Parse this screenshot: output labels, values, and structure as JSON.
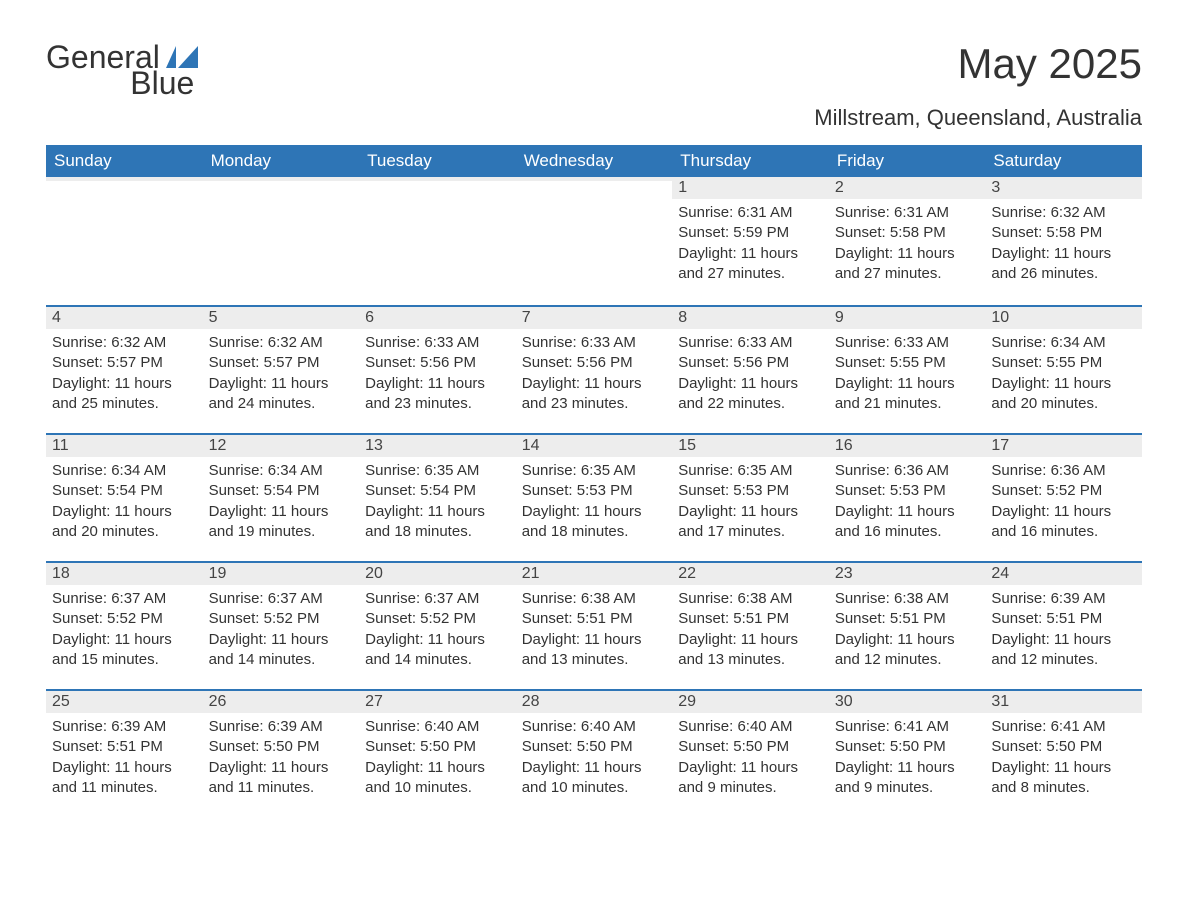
{
  "logo": {
    "word1": "General",
    "word2": "Blue",
    "accent_color": "#2e75b6"
  },
  "title": "May 2025",
  "location": "Millstream, Queensland, Australia",
  "colors": {
    "header_bg": "#2e75b6",
    "header_fg": "#ffffff",
    "daynum_bg": "#ededed",
    "rule": "#2e75b6",
    "text": "#333333",
    "page_bg": "#ffffff"
  },
  "typography": {
    "title_fontsize": 42,
    "subtitle_fontsize": 22,
    "header_fontsize": 17,
    "daynum_fontsize": 16,
    "body_fontsize": 15
  },
  "day_headers": [
    "Sunday",
    "Monday",
    "Tuesday",
    "Wednesday",
    "Thursday",
    "Friday",
    "Saturday"
  ],
  "weeks": [
    [
      null,
      null,
      null,
      null,
      {
        "n": "1",
        "sunrise": "Sunrise: 6:31 AM",
        "sunset": "Sunset: 5:59 PM",
        "daylight": "Daylight: 11 hours and 27 minutes."
      },
      {
        "n": "2",
        "sunrise": "Sunrise: 6:31 AM",
        "sunset": "Sunset: 5:58 PM",
        "daylight": "Daylight: 11 hours and 27 minutes."
      },
      {
        "n": "3",
        "sunrise": "Sunrise: 6:32 AM",
        "sunset": "Sunset: 5:58 PM",
        "daylight": "Daylight: 11 hours and 26 minutes."
      }
    ],
    [
      {
        "n": "4",
        "sunrise": "Sunrise: 6:32 AM",
        "sunset": "Sunset: 5:57 PM",
        "daylight": "Daylight: 11 hours and 25 minutes."
      },
      {
        "n": "5",
        "sunrise": "Sunrise: 6:32 AM",
        "sunset": "Sunset: 5:57 PM",
        "daylight": "Daylight: 11 hours and 24 minutes."
      },
      {
        "n": "6",
        "sunrise": "Sunrise: 6:33 AM",
        "sunset": "Sunset: 5:56 PM",
        "daylight": "Daylight: 11 hours and 23 minutes."
      },
      {
        "n": "7",
        "sunrise": "Sunrise: 6:33 AM",
        "sunset": "Sunset: 5:56 PM",
        "daylight": "Daylight: 11 hours and 23 minutes."
      },
      {
        "n": "8",
        "sunrise": "Sunrise: 6:33 AM",
        "sunset": "Sunset: 5:56 PM",
        "daylight": "Daylight: 11 hours and 22 minutes."
      },
      {
        "n": "9",
        "sunrise": "Sunrise: 6:33 AM",
        "sunset": "Sunset: 5:55 PM",
        "daylight": "Daylight: 11 hours and 21 minutes."
      },
      {
        "n": "10",
        "sunrise": "Sunrise: 6:34 AM",
        "sunset": "Sunset: 5:55 PM",
        "daylight": "Daylight: 11 hours and 20 minutes."
      }
    ],
    [
      {
        "n": "11",
        "sunrise": "Sunrise: 6:34 AM",
        "sunset": "Sunset: 5:54 PM",
        "daylight": "Daylight: 11 hours and 20 minutes."
      },
      {
        "n": "12",
        "sunrise": "Sunrise: 6:34 AM",
        "sunset": "Sunset: 5:54 PM",
        "daylight": "Daylight: 11 hours and 19 minutes."
      },
      {
        "n": "13",
        "sunrise": "Sunrise: 6:35 AM",
        "sunset": "Sunset: 5:54 PM",
        "daylight": "Daylight: 11 hours and 18 minutes."
      },
      {
        "n": "14",
        "sunrise": "Sunrise: 6:35 AM",
        "sunset": "Sunset: 5:53 PM",
        "daylight": "Daylight: 11 hours and 18 minutes."
      },
      {
        "n": "15",
        "sunrise": "Sunrise: 6:35 AM",
        "sunset": "Sunset: 5:53 PM",
        "daylight": "Daylight: 11 hours and 17 minutes."
      },
      {
        "n": "16",
        "sunrise": "Sunrise: 6:36 AM",
        "sunset": "Sunset: 5:53 PM",
        "daylight": "Daylight: 11 hours and 16 minutes."
      },
      {
        "n": "17",
        "sunrise": "Sunrise: 6:36 AM",
        "sunset": "Sunset: 5:52 PM",
        "daylight": "Daylight: 11 hours and 16 minutes."
      }
    ],
    [
      {
        "n": "18",
        "sunrise": "Sunrise: 6:37 AM",
        "sunset": "Sunset: 5:52 PM",
        "daylight": "Daylight: 11 hours and 15 minutes."
      },
      {
        "n": "19",
        "sunrise": "Sunrise: 6:37 AM",
        "sunset": "Sunset: 5:52 PM",
        "daylight": "Daylight: 11 hours and 14 minutes."
      },
      {
        "n": "20",
        "sunrise": "Sunrise: 6:37 AM",
        "sunset": "Sunset: 5:52 PM",
        "daylight": "Daylight: 11 hours and 14 minutes."
      },
      {
        "n": "21",
        "sunrise": "Sunrise: 6:38 AM",
        "sunset": "Sunset: 5:51 PM",
        "daylight": "Daylight: 11 hours and 13 minutes."
      },
      {
        "n": "22",
        "sunrise": "Sunrise: 6:38 AM",
        "sunset": "Sunset: 5:51 PM",
        "daylight": "Daylight: 11 hours and 13 minutes."
      },
      {
        "n": "23",
        "sunrise": "Sunrise: 6:38 AM",
        "sunset": "Sunset: 5:51 PM",
        "daylight": "Daylight: 11 hours and 12 minutes."
      },
      {
        "n": "24",
        "sunrise": "Sunrise: 6:39 AM",
        "sunset": "Sunset: 5:51 PM",
        "daylight": "Daylight: 11 hours and 12 minutes."
      }
    ],
    [
      {
        "n": "25",
        "sunrise": "Sunrise: 6:39 AM",
        "sunset": "Sunset: 5:51 PM",
        "daylight": "Daylight: 11 hours and 11 minutes."
      },
      {
        "n": "26",
        "sunrise": "Sunrise: 6:39 AM",
        "sunset": "Sunset: 5:50 PM",
        "daylight": "Daylight: 11 hours and 11 minutes."
      },
      {
        "n": "27",
        "sunrise": "Sunrise: 6:40 AM",
        "sunset": "Sunset: 5:50 PM",
        "daylight": "Daylight: 11 hours and 10 minutes."
      },
      {
        "n": "28",
        "sunrise": "Sunrise: 6:40 AM",
        "sunset": "Sunset: 5:50 PM",
        "daylight": "Daylight: 11 hours and 10 minutes."
      },
      {
        "n": "29",
        "sunrise": "Sunrise: 6:40 AM",
        "sunset": "Sunset: 5:50 PM",
        "daylight": "Daylight: 11 hours and 9 minutes."
      },
      {
        "n": "30",
        "sunrise": "Sunrise: 6:41 AM",
        "sunset": "Sunset: 5:50 PM",
        "daylight": "Daylight: 11 hours and 9 minutes."
      },
      {
        "n": "31",
        "sunrise": "Sunrise: 6:41 AM",
        "sunset": "Sunset: 5:50 PM",
        "daylight": "Daylight: 11 hours and 8 minutes."
      }
    ]
  ]
}
